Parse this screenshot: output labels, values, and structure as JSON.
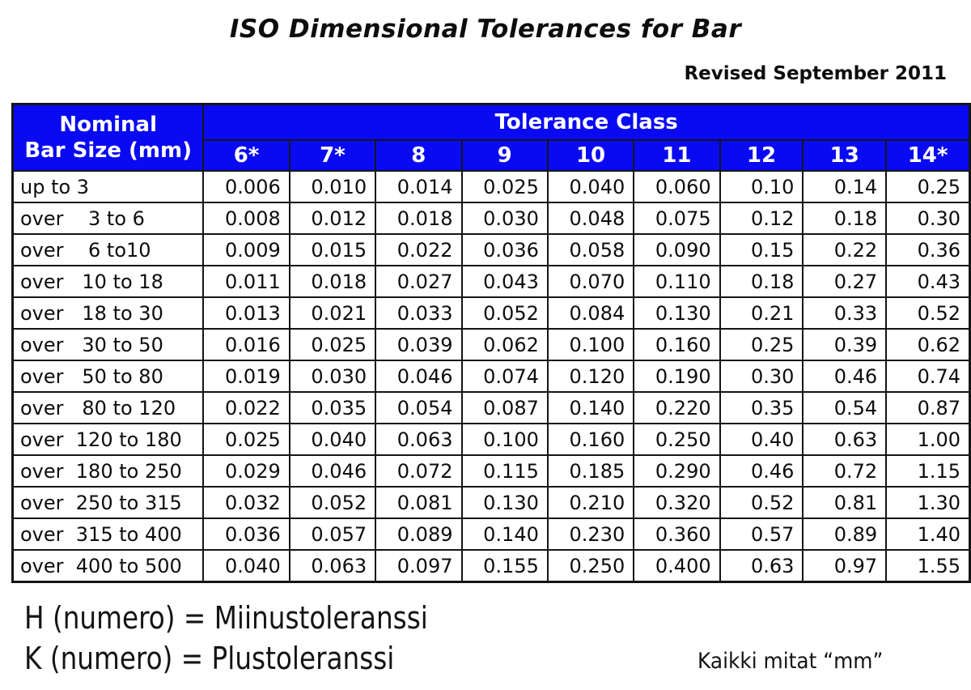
{
  "title": "ISO Dimensional Tolerances for Bar",
  "revised": "Revised September 2011",
  "colors": {
    "header_blue": "#0a0af2",
    "header_text": "#ffffff",
    "border": "#151515",
    "text": "#0d0d0d",
    "background": "#ffffff"
  },
  "table": {
    "corner_line1": "Nominal",
    "corner_line2": "Bar Size (mm)",
    "group_header": "Tolerance Class",
    "class_labels": [
      "6*",
      "7*",
      "8",
      "9",
      "10",
      "11",
      "12",
      "13",
      "14*"
    ],
    "rows": [
      {
        "label": "up to 3",
        "values": [
          "0.006",
          "0.010",
          "0.014",
          "0.025",
          "0.040",
          "0.060",
          "0.10",
          "0.14",
          "0.25"
        ]
      },
      {
        "label": "over    3 to 6",
        "values": [
          "0.008",
          "0.012",
          "0.018",
          "0.030",
          "0.048",
          "0.075",
          "0.12",
          "0.18",
          "0.30"
        ]
      },
      {
        "label": "over    6 to10",
        "values": [
          "0.009",
          "0.015",
          "0.022",
          "0.036",
          "0.058",
          "0.090",
          "0.15",
          "0.22",
          "0.36"
        ]
      },
      {
        "label": "over   10 to 18",
        "values": [
          "0.011",
          "0.018",
          "0.027",
          "0.043",
          "0.070",
          "0.110",
          "0.18",
          "0.27",
          "0.43"
        ]
      },
      {
        "label": "over   18 to 30",
        "values": [
          "0.013",
          "0.021",
          "0.033",
          "0.052",
          "0.084",
          "0.130",
          "0.21",
          "0.33",
          "0.52"
        ]
      },
      {
        "label": "over   30 to 50",
        "values": [
          "0.016",
          "0.025",
          "0.039",
          "0.062",
          "0.100",
          "0.160",
          "0.25",
          "0.39",
          "0.62"
        ]
      },
      {
        "label": "over   50 to 80",
        "values": [
          "0.019",
          "0.030",
          "0.046",
          "0.074",
          "0.120",
          "0.190",
          "0.30",
          "0.46",
          "0.74"
        ]
      },
      {
        "label": "over   80 to 120",
        "values": [
          "0.022",
          "0.035",
          "0.054",
          "0.087",
          "0.140",
          "0.220",
          "0.35",
          "0.54",
          "0.87"
        ]
      },
      {
        "label": "over  120 to 180",
        "values": [
          "0.025",
          "0.040",
          "0.063",
          "0.100",
          "0.160",
          "0.250",
          "0.40",
          "0.63",
          "1.00"
        ]
      },
      {
        "label": "over  180 to 250",
        "values": [
          "0.029",
          "0.046",
          "0.072",
          "0.115",
          "0.185",
          "0.290",
          "0.46",
          "0.72",
          "1.15"
        ]
      },
      {
        "label": "over  250 to 315",
        "values": [
          "0.032",
          "0.052",
          "0.081",
          "0.130",
          "0.210",
          "0.320",
          "0.52",
          "0.81",
          "1.30"
        ]
      },
      {
        "label": "over  315 to 400",
        "values": [
          "0.036",
          "0.057",
          "0.089",
          "0.140",
          "0.230",
          "0.360",
          "0.57",
          "0.89",
          "1.40"
        ]
      },
      {
        "label": "over  400 to 500",
        "values": [
          "0.040",
          "0.063",
          "0.097",
          "0.155",
          "0.250",
          "0.400",
          "0.63",
          "0.97",
          "1.55"
        ]
      }
    ]
  },
  "legend": {
    "h": "H (numero) = Miinustoleranssi",
    "k": "K (numero) = Plustoleranssi"
  },
  "units_note": "Kaikki mitat “mm”"
}
